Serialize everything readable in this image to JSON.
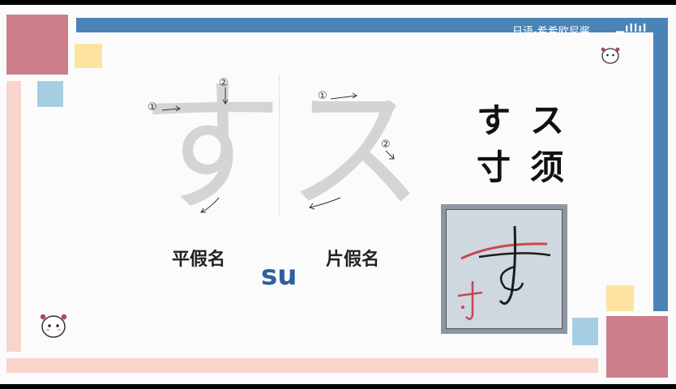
{
  "watermark": "日语-希希欧尼酱",
  "logo": "bilibili",
  "hiragana": {
    "label": "平假名",
    "char": "す"
  },
  "katakana": {
    "label": "片假名",
    "char": "ス"
  },
  "romaji": "su",
  "stroke_numbers": {
    "one": "①",
    "two": "②"
  },
  "origin_chars": {
    "hira_origin": "寸",
    "kata_origin": "须"
  },
  "colors": {
    "blue_bar": "#4a84b7",
    "pink_square": "#cc7d8a",
    "pink_bar": "#f8d4cd",
    "light_blue": "#a7cde3",
    "yellow": "#fde3a0",
    "ghost_char": "#d4d4d4",
    "romaji_blue": "#2f5f9e"
  },
  "icons": [
    "mascot-icon",
    "bilibili-logo-icon",
    "stroke-arrow-icon"
  ]
}
